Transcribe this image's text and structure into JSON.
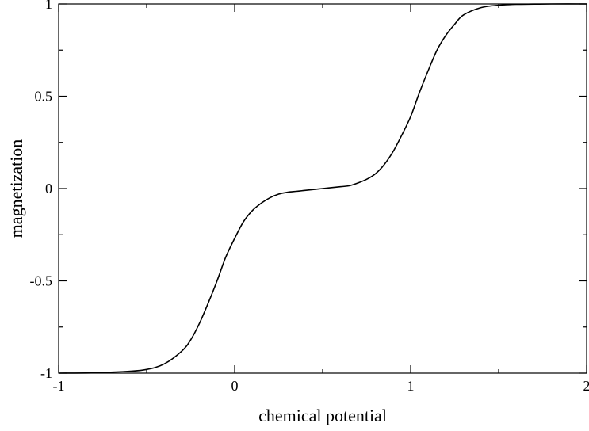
{
  "chart_data": {
    "type": "line",
    "title": "",
    "xlabel": "chemical potential",
    "ylabel": "magnetization",
    "xlim": [
      -1,
      2
    ],
    "ylim": [
      -1,
      1
    ],
    "x_ticks": [
      {
        "value": -1,
        "label": "-1"
      },
      {
        "value": 0,
        "label": "0"
      },
      {
        "value": 1,
        "label": "1"
      },
      {
        "value": 2,
        "label": "2"
      }
    ],
    "y_ticks": [
      {
        "value": -1,
        "label": "-1"
      },
      {
        "value": -0.5,
        "label": "-0.5"
      },
      {
        "value": 0,
        "label": "0"
      },
      {
        "value": 0.5,
        "label": "0.5"
      },
      {
        "value": 1,
        "label": "1"
      }
    ],
    "x_minor_ticks": [
      -0.5,
      0.5,
      1.5
    ],
    "y_minor_ticks": [
      -0.75,
      -0.25,
      0.25,
      0.75
    ],
    "grid": false,
    "line_color": "#000000",
    "series": [
      {
        "x": [
          -1.0,
          -0.8,
          -0.6,
          -0.5,
          -0.4,
          -0.3,
          -0.25,
          -0.2,
          -0.15,
          -0.1,
          -0.05,
          0.0,
          0.05,
          0.1,
          0.15,
          0.2,
          0.25,
          0.3,
          0.35,
          0.4,
          0.5,
          0.6,
          0.65,
          0.7,
          0.75,
          0.8,
          0.85,
          0.9,
          0.95,
          1.0,
          1.05,
          1.1,
          1.15,
          1.2,
          1.25,
          1.3,
          1.4,
          1.5,
          1.6,
          1.7,
          1.8,
          2.0
        ],
        "y": [
          -1.0,
          -0.998,
          -0.99,
          -0.98,
          -0.95,
          -0.88,
          -0.82,
          -0.73,
          -0.62,
          -0.5,
          -0.37,
          -0.27,
          -0.18,
          -0.12,
          -0.08,
          -0.05,
          -0.03,
          -0.02,
          -0.015,
          -0.01,
          0.0,
          0.01,
          0.015,
          0.03,
          0.05,
          0.08,
          0.13,
          0.2,
          0.29,
          0.39,
          0.52,
          0.64,
          0.75,
          0.83,
          0.89,
          0.94,
          0.98,
          0.993,
          0.998,
          0.999,
          1.0,
          1.0
        ]
      }
    ]
  }
}
